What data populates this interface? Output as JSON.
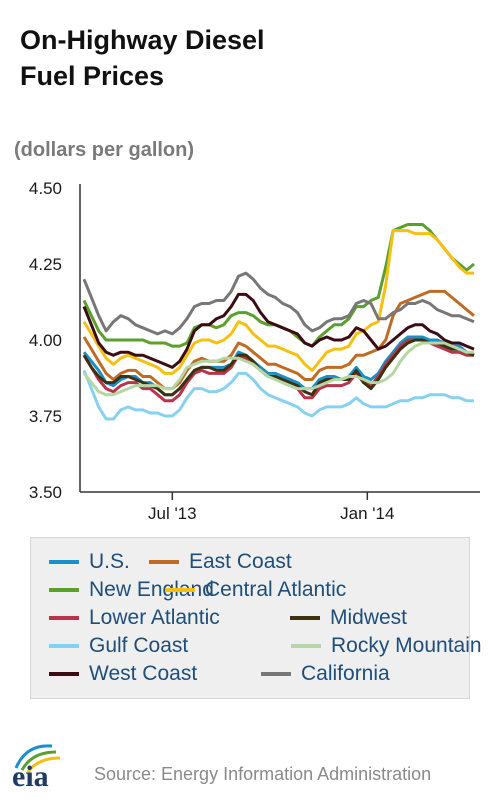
{
  "chart_data": {
    "type": "line",
    "title_lines": [
      "On-Highway Diesel",
      "Fuel Prices"
    ],
    "unit_label": "(dollars per gallon)",
    "ylim": [
      3.5,
      4.5
    ],
    "yticks": [
      "4.50",
      "4.25",
      "4.00",
      "3.75",
      "3.50"
    ],
    "ytick_values": [
      4.5,
      4.25,
      4.0,
      3.75,
      3.5
    ],
    "xtick_labels": [
      "Jul '13",
      "Jan '14"
    ],
    "xtick_weeks": [
      12,
      38.5
    ],
    "weeks": 54,
    "grid": false,
    "legend_position": "bottom",
    "series": [
      {
        "name": "U.S.",
        "color": "#1a8fc9",
        "values": [
          3.96,
          3.93,
          3.9,
          3.86,
          3.85,
          3.87,
          3.88,
          3.88,
          3.86,
          3.86,
          3.84,
          3.82,
          3.82,
          3.84,
          3.87,
          3.9,
          3.91,
          3.91,
          3.91,
          3.91,
          3.92,
          3.96,
          3.95,
          3.93,
          3.91,
          3.89,
          3.89,
          3.88,
          3.87,
          3.86,
          3.84,
          3.84,
          3.87,
          3.88,
          3.88,
          3.87,
          3.88,
          3.91,
          3.88,
          3.87,
          3.89,
          3.93,
          3.96,
          3.99,
          4.01,
          4.01,
          4.01,
          4.0,
          4.0,
          3.99,
          3.98,
          3.98,
          3.96,
          3.95
        ]
      },
      {
        "name": "East Coast",
        "color": "#c06b25",
        "values": [
          4.01,
          3.97,
          3.93,
          3.89,
          3.87,
          3.89,
          3.9,
          3.9,
          3.88,
          3.88,
          3.86,
          3.84,
          3.84,
          3.86,
          3.9,
          3.93,
          3.94,
          3.93,
          3.93,
          3.93,
          3.95,
          3.99,
          3.98,
          3.96,
          3.94,
          3.92,
          3.92,
          3.91,
          3.9,
          3.89,
          3.87,
          3.87,
          3.9,
          3.91,
          3.91,
          3.91,
          3.92,
          3.95,
          3.95,
          3.96,
          3.97,
          4.0,
          4.08,
          4.12,
          4.13,
          4.14,
          4.15,
          4.16,
          4.16,
          4.16,
          4.14,
          4.12,
          4.1,
          4.08
        ]
      },
      {
        "name": "New England",
        "color": "#5aa02c",
        "values": [
          4.13,
          4.08,
          4.03,
          4.0,
          4.0,
          4.0,
          4.0,
          4.0,
          4.0,
          3.99,
          3.99,
          3.99,
          3.98,
          3.98,
          3.99,
          4.04,
          4.05,
          4.05,
          4.04,
          4.05,
          4.08,
          4.09,
          4.09,
          4.08,
          4.06,
          4.05,
          4.05,
          4.04,
          4.03,
          4.01,
          3.99,
          3.98,
          4.01,
          4.03,
          4.05,
          4.05,
          4.07,
          4.11,
          4.11,
          4.13,
          4.14,
          4.24,
          4.36,
          4.37,
          4.38,
          4.38,
          4.38,
          4.36,
          4.33,
          4.3,
          4.27,
          4.25,
          4.23,
          4.25
        ]
      },
      {
        "name": "Central Atlantic",
        "color": "#f5c011",
        "values": [
          4.06,
          4.02,
          3.98,
          3.94,
          3.92,
          3.94,
          3.95,
          3.94,
          3.93,
          3.92,
          3.91,
          3.89,
          3.89,
          3.91,
          3.95,
          3.99,
          4.0,
          4.0,
          3.99,
          4.0,
          4.02,
          4.06,
          4.05,
          4.02,
          4.0,
          3.98,
          3.98,
          3.97,
          3.96,
          3.95,
          3.92,
          3.9,
          3.93,
          3.96,
          3.97,
          3.97,
          3.98,
          4.02,
          4.03,
          4.05,
          4.06,
          4.18,
          4.36,
          4.36,
          4.36,
          4.35,
          4.35,
          4.35,
          4.33,
          4.3,
          4.27,
          4.24,
          4.22,
          4.22
        ]
      },
      {
        "name": "Lower Atlantic",
        "color": "#b8344b",
        "values": [
          3.95,
          3.91,
          3.87,
          3.84,
          3.83,
          3.85,
          3.86,
          3.86,
          3.84,
          3.84,
          3.82,
          3.8,
          3.8,
          3.82,
          3.86,
          3.89,
          3.9,
          3.89,
          3.89,
          3.89,
          3.91,
          3.95,
          3.94,
          3.92,
          3.9,
          3.88,
          3.88,
          3.86,
          3.85,
          3.84,
          3.81,
          3.81,
          3.84,
          3.85,
          3.85,
          3.85,
          3.86,
          3.89,
          3.86,
          3.85,
          3.88,
          3.92,
          3.95,
          3.98,
          4.0,
          4.0,
          4.0,
          3.99,
          3.98,
          3.97,
          3.96,
          3.96,
          3.95,
          3.95
        ]
      },
      {
        "name": "Midwest",
        "color": "#3d3110",
        "values": [
          3.95,
          3.91,
          3.88,
          3.86,
          3.86,
          3.88,
          3.88,
          3.87,
          3.86,
          3.85,
          3.84,
          3.82,
          3.82,
          3.84,
          3.87,
          3.9,
          3.91,
          3.91,
          3.9,
          3.9,
          3.92,
          3.95,
          3.95,
          3.93,
          3.9,
          3.88,
          3.88,
          3.87,
          3.86,
          3.85,
          3.83,
          3.82,
          3.86,
          3.87,
          3.87,
          3.87,
          3.87,
          3.9,
          3.86,
          3.84,
          3.87,
          3.91,
          3.94,
          3.97,
          3.99,
          4.0,
          4.0,
          3.99,
          3.99,
          3.98,
          3.97,
          3.97,
          3.96,
          3.95
        ]
      },
      {
        "name": "Gulf Coast",
        "color": "#86d1f1",
        "values": [
          3.9,
          3.84,
          3.78,
          3.74,
          3.74,
          3.77,
          3.78,
          3.77,
          3.77,
          3.76,
          3.76,
          3.75,
          3.75,
          3.77,
          3.81,
          3.84,
          3.84,
          3.83,
          3.83,
          3.84,
          3.86,
          3.89,
          3.89,
          3.87,
          3.84,
          3.82,
          3.81,
          3.8,
          3.79,
          3.78,
          3.76,
          3.75,
          3.77,
          3.78,
          3.78,
          3.78,
          3.79,
          3.81,
          3.79,
          3.78,
          3.78,
          3.78,
          3.79,
          3.8,
          3.8,
          3.81,
          3.81,
          3.82,
          3.82,
          3.82,
          3.81,
          3.81,
          3.8,
          3.8
        ]
      },
      {
        "name": "Rocky Mountain",
        "color": "#b5d7a3",
        "values": [
          3.89,
          3.86,
          3.83,
          3.82,
          3.82,
          3.83,
          3.84,
          3.85,
          3.85,
          3.85,
          3.85,
          3.84,
          3.84,
          3.87,
          3.91,
          3.92,
          3.93,
          3.93,
          3.93,
          3.94,
          3.94,
          3.94,
          3.93,
          3.92,
          3.9,
          3.88,
          3.87,
          3.86,
          3.85,
          3.84,
          3.84,
          3.84,
          3.85,
          3.86,
          3.87,
          3.87,
          3.88,
          3.88,
          3.87,
          3.86,
          3.86,
          3.87,
          3.89,
          3.93,
          3.96,
          3.98,
          3.99,
          3.99,
          3.99,
          3.99,
          3.98,
          3.97,
          3.96,
          3.96
        ]
      },
      {
        "name": "West Coast",
        "color": "#3b0c14",
        "values": [
          4.11,
          4.05,
          3.99,
          3.96,
          3.95,
          3.96,
          3.96,
          3.95,
          3.95,
          3.94,
          3.93,
          3.92,
          3.91,
          3.93,
          3.97,
          4.03,
          4.05,
          4.05,
          4.07,
          4.08,
          4.11,
          4.15,
          4.15,
          4.13,
          4.09,
          4.06,
          4.05,
          4.04,
          4.03,
          4.02,
          3.99,
          3.98,
          4.0,
          4.01,
          4.0,
          4.0,
          4.01,
          4.04,
          4.03,
          4.0,
          3.97,
          3.98,
          4.0,
          4.02,
          4.04,
          4.05,
          4.05,
          4.03,
          4.02,
          4.0,
          3.99,
          3.99,
          3.98,
          3.97
        ]
      },
      {
        "name": "California",
        "color": "#777777",
        "values": [
          4.2,
          4.14,
          4.08,
          4.03,
          4.06,
          4.08,
          4.07,
          4.05,
          4.04,
          4.03,
          4.02,
          4.03,
          4.02,
          4.04,
          4.07,
          4.11,
          4.12,
          4.12,
          4.13,
          4.13,
          4.16,
          4.21,
          4.22,
          4.2,
          4.17,
          4.15,
          4.14,
          4.12,
          4.11,
          4.09,
          4.05,
          4.03,
          4.04,
          4.06,
          4.07,
          4.07,
          4.08,
          4.12,
          4.13,
          4.12,
          4.07,
          4.07,
          4.09,
          4.1,
          4.12,
          4.12,
          4.13,
          4.12,
          4.1,
          4.09,
          4.08,
          4.08,
          4.07,
          4.06
        ]
      }
    ]
  },
  "footer": {
    "logo_text": "eia",
    "source": "Source: Energy Information Administration"
  }
}
